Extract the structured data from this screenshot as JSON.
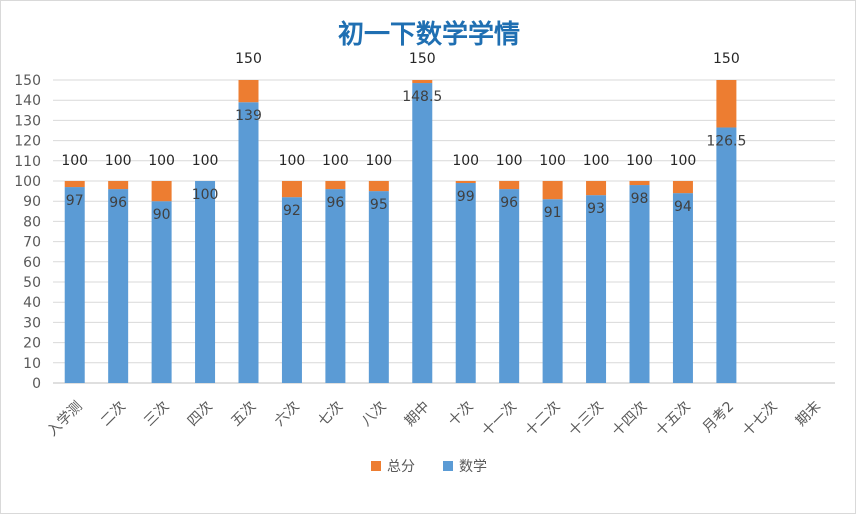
{
  "chart_data": {
    "type": "bar",
    "stacked": true,
    "title": "初一下数学学情",
    "categories": [
      "入学测",
      "二次",
      "三次",
      "四次",
      "五次",
      "六次",
      "七次",
      "八次",
      "期中",
      "十次",
      "十一次",
      "十二次",
      "十三次",
      "十四次",
      "十五次",
      "月考2",
      "十七次",
      "期末"
    ],
    "series": [
      {
        "name": "数学",
        "values": [
          97,
          96,
          90,
          100,
          139,
          92,
          96,
          95,
          148.5,
          99,
          96,
          91,
          93,
          98,
          94,
          126.5,
          null,
          null
        ],
        "color": "#5b9bd5"
      },
      {
        "name": "总分",
        "values": [
          3,
          4,
          10,
          0,
          11,
          8,
          4,
          5,
          1.5,
          1,
          4,
          9,
          7,
          2,
          6,
          23.5,
          null,
          null
        ],
        "color": "#ed7d31"
      }
    ],
    "totals": [
      100,
      100,
      100,
      100,
      150,
      100,
      100,
      100,
      150,
      100,
      100,
      100,
      100,
      100,
      100,
      150,
      null,
      null
    ],
    "inner_labels": [
      "97",
      "96",
      "90",
      "100",
      "139",
      "92",
      "96",
      "95",
      "148.5",
      "99",
      "96",
      "91",
      "93",
      "98",
      "94",
      "126.5",
      null,
      null
    ],
    "top_labels": [
      "100",
      "100",
      "100",
      "100",
      "150",
      "100",
      "100",
      "100",
      "150",
      "100",
      "100",
      "100",
      "100",
      "100",
      "100",
      "150",
      null,
      null
    ],
    "yticks": [
      "0",
      "10",
      "20",
      "30",
      "40",
      "50",
      "60",
      "70",
      "80",
      "90",
      "100",
      "110",
      "120",
      "130",
      "140",
      "150"
    ],
    "ylim": [
      0,
      150
    ],
    "grid": true,
    "legend": {
      "position": "bottom",
      "items": [
        {
          "name": "总分",
          "color": "#ed7d31"
        },
        {
          "name": "数学",
          "color": "#5b9bd5"
        }
      ]
    }
  }
}
